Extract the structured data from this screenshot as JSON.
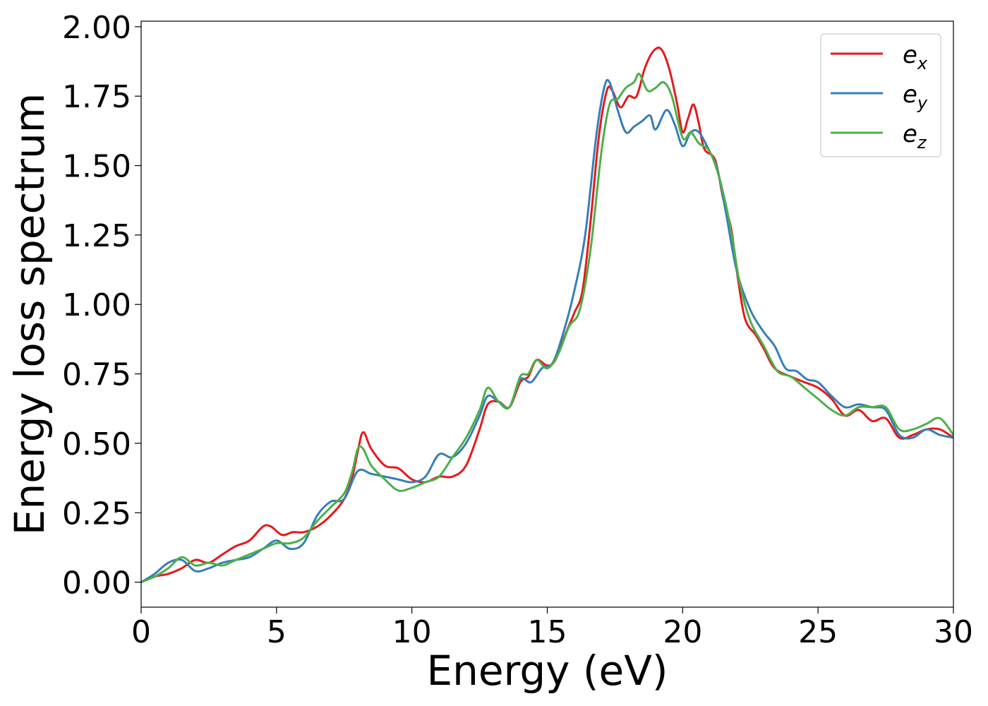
{
  "chart_data": {
    "type": "line",
    "title": "",
    "xlabel": "Energy (eV)",
    "ylabel": "Energy loss spectrum",
    "xlim": [
      0,
      30
    ],
    "ylim": [
      -0.09,
      2.02
    ],
    "xticks": [
      0,
      5,
      10,
      15,
      20,
      25,
      30
    ],
    "xtick_labels": [
      "0",
      "5",
      "10",
      "15",
      "20",
      "25",
      "30"
    ],
    "yticks": [
      0.0,
      0.25,
      0.5,
      0.75,
      1.0,
      1.25,
      1.5,
      1.75,
      2.0
    ],
    "ytick_labels": [
      "0.00",
      "0.25",
      "0.50",
      "0.75",
      "1.00",
      "1.25",
      "1.50",
      "1.75",
      "2.00"
    ],
    "grid": false,
    "legend_position": "top-right",
    "series": [
      {
        "name": "e_x",
        "label_base": "e",
        "label_sub": "x",
        "color": "#e41a1c",
        "points": [
          [
            0,
            0.0
          ],
          [
            0.5,
            0.02
          ],
          [
            1.0,
            0.03
          ],
          [
            1.5,
            0.05
          ],
          [
            2.0,
            0.08
          ],
          [
            2.5,
            0.07
          ],
          [
            3.0,
            0.1
          ],
          [
            3.5,
            0.13
          ],
          [
            4.0,
            0.15
          ],
          [
            4.5,
            0.2
          ],
          [
            4.8,
            0.2
          ],
          [
            5.2,
            0.17
          ],
          [
            5.6,
            0.18
          ],
          [
            6.0,
            0.18
          ],
          [
            6.5,
            0.2
          ],
          [
            7.0,
            0.24
          ],
          [
            7.5,
            0.3
          ],
          [
            7.8,
            0.38
          ],
          [
            8.0,
            0.47
          ],
          [
            8.2,
            0.54
          ],
          [
            8.5,
            0.48
          ],
          [
            9.0,
            0.42
          ],
          [
            9.5,
            0.41
          ],
          [
            10.0,
            0.37
          ],
          [
            10.5,
            0.36
          ],
          [
            11.0,
            0.38
          ],
          [
            11.5,
            0.38
          ],
          [
            12.0,
            0.42
          ],
          [
            12.5,
            0.55
          ],
          [
            12.8,
            0.64
          ],
          [
            13.2,
            0.65
          ],
          [
            13.6,
            0.63
          ],
          [
            14.0,
            0.72
          ],
          [
            14.3,
            0.74
          ],
          [
            14.6,
            0.8
          ],
          [
            15.0,
            0.78
          ],
          [
            15.3,
            0.8
          ],
          [
            15.7,
            0.9
          ],
          [
            16.0,
            0.97
          ],
          [
            16.3,
            1.05
          ],
          [
            16.6,
            1.3
          ],
          [
            16.9,
            1.6
          ],
          [
            17.2,
            1.77
          ],
          [
            17.4,
            1.77
          ],
          [
            17.7,
            1.71
          ],
          [
            18.0,
            1.75
          ],
          [
            18.3,
            1.75
          ],
          [
            18.6,
            1.85
          ],
          [
            18.9,
            1.91
          ],
          [
            19.2,
            1.92
          ],
          [
            19.5,
            1.85
          ],
          [
            19.8,
            1.72
          ],
          [
            20.0,
            1.62
          ],
          [
            20.2,
            1.67
          ],
          [
            20.4,
            1.72
          ],
          [
            20.6,
            1.65
          ],
          [
            20.8,
            1.56
          ],
          [
            21.2,
            1.52
          ],
          [
            21.5,
            1.38
          ],
          [
            21.8,
            1.27
          ],
          [
            22.0,
            1.12
          ],
          [
            22.3,
            0.95
          ],
          [
            22.7,
            0.89
          ],
          [
            23.0,
            0.84
          ],
          [
            23.4,
            0.77
          ],
          [
            24.0,
            0.74
          ],
          [
            24.5,
            0.72
          ],
          [
            25.0,
            0.7
          ],
          [
            25.5,
            0.66
          ],
          [
            26.0,
            0.6
          ],
          [
            26.5,
            0.62
          ],
          [
            27.0,
            0.58
          ],
          [
            27.5,
            0.59
          ],
          [
            28.0,
            0.52
          ],
          [
            28.5,
            0.53
          ],
          [
            29.0,
            0.55
          ],
          [
            29.5,
            0.55
          ],
          [
            30.0,
            0.52
          ]
        ]
      },
      {
        "name": "e_y",
        "label_base": "e",
        "label_sub": "y",
        "color": "#377eb8",
        "points": [
          [
            0,
            0.0
          ],
          [
            0.5,
            0.03
          ],
          [
            1.0,
            0.07
          ],
          [
            1.5,
            0.08
          ],
          [
            2.0,
            0.04
          ],
          [
            2.5,
            0.05
          ],
          [
            3.0,
            0.07
          ],
          [
            3.5,
            0.08
          ],
          [
            4.0,
            0.09
          ],
          [
            4.5,
            0.12
          ],
          [
            5.0,
            0.15
          ],
          [
            5.5,
            0.12
          ],
          [
            6.0,
            0.14
          ],
          [
            6.5,
            0.24
          ],
          [
            7.0,
            0.29
          ],
          [
            7.5,
            0.3
          ],
          [
            8.0,
            0.4
          ],
          [
            8.5,
            0.39
          ],
          [
            9.0,
            0.38
          ],
          [
            9.5,
            0.37
          ],
          [
            10.0,
            0.36
          ],
          [
            10.5,
            0.38
          ],
          [
            11.0,
            0.46
          ],
          [
            11.5,
            0.45
          ],
          [
            12.0,
            0.5
          ],
          [
            12.5,
            0.6
          ],
          [
            12.8,
            0.67
          ],
          [
            13.2,
            0.65
          ],
          [
            13.6,
            0.63
          ],
          [
            14.0,
            0.73
          ],
          [
            14.4,
            0.72
          ],
          [
            14.8,
            0.77
          ],
          [
            15.2,
            0.79
          ],
          [
            15.6,
            0.9
          ],
          [
            16.0,
            1.05
          ],
          [
            16.4,
            1.25
          ],
          [
            16.8,
            1.6
          ],
          [
            17.1,
            1.78
          ],
          [
            17.3,
            1.8
          ],
          [
            17.6,
            1.7
          ],
          [
            17.9,
            1.62
          ],
          [
            18.2,
            1.64
          ],
          [
            18.5,
            1.66
          ],
          [
            18.8,
            1.68
          ],
          [
            19.0,
            1.63
          ],
          [
            19.4,
            1.7
          ],
          [
            19.7,
            1.65
          ],
          [
            20.0,
            1.57
          ],
          [
            20.3,
            1.62
          ],
          [
            20.6,
            1.62
          ],
          [
            21.0,
            1.55
          ],
          [
            21.3,
            1.48
          ],
          [
            21.6,
            1.33
          ],
          [
            22.0,
            1.12
          ],
          [
            22.5,
            0.98
          ],
          [
            23.0,
            0.9
          ],
          [
            23.4,
            0.85
          ],
          [
            23.8,
            0.77
          ],
          [
            24.2,
            0.76
          ],
          [
            24.6,
            0.73
          ],
          [
            25.0,
            0.72
          ],
          [
            25.5,
            0.67
          ],
          [
            26.0,
            0.63
          ],
          [
            26.5,
            0.64
          ],
          [
            27.0,
            0.63
          ],
          [
            27.5,
            0.62
          ],
          [
            28.0,
            0.53
          ],
          [
            28.5,
            0.52
          ],
          [
            29.0,
            0.55
          ],
          [
            29.5,
            0.53
          ],
          [
            30.0,
            0.52
          ]
        ]
      },
      {
        "name": "e_z",
        "label_base": "e",
        "label_sub": "z",
        "color": "#4daf4a",
        "points": [
          [
            0,
            0.0
          ],
          [
            0.5,
            0.02
          ],
          [
            1.0,
            0.05
          ],
          [
            1.5,
            0.09
          ],
          [
            2.0,
            0.06
          ],
          [
            2.5,
            0.07
          ],
          [
            3.0,
            0.06
          ],
          [
            3.5,
            0.08
          ],
          [
            4.0,
            0.1
          ],
          [
            4.5,
            0.12
          ],
          [
            5.0,
            0.14
          ],
          [
            5.5,
            0.14
          ],
          [
            6.0,
            0.16
          ],
          [
            6.5,
            0.22
          ],
          [
            7.0,
            0.27
          ],
          [
            7.5,
            0.32
          ],
          [
            7.8,
            0.4
          ],
          [
            8.0,
            0.48
          ],
          [
            8.2,
            0.48
          ],
          [
            8.5,
            0.42
          ],
          [
            9.0,
            0.37
          ],
          [
            9.5,
            0.33
          ],
          [
            10.0,
            0.34
          ],
          [
            10.5,
            0.36
          ],
          [
            11.0,
            0.38
          ],
          [
            11.5,
            0.45
          ],
          [
            12.0,
            0.52
          ],
          [
            12.5,
            0.62
          ],
          [
            12.8,
            0.7
          ],
          [
            13.2,
            0.65
          ],
          [
            13.6,
            0.63
          ],
          [
            14.0,
            0.74
          ],
          [
            14.3,
            0.75
          ],
          [
            14.6,
            0.8
          ],
          [
            15.0,
            0.77
          ],
          [
            15.4,
            0.82
          ],
          [
            15.8,
            0.92
          ],
          [
            16.2,
            0.98
          ],
          [
            16.6,
            1.2
          ],
          [
            17.0,
            1.55
          ],
          [
            17.3,
            1.72
          ],
          [
            17.6,
            1.74
          ],
          [
            17.9,
            1.78
          ],
          [
            18.2,
            1.8
          ],
          [
            18.4,
            1.83
          ],
          [
            18.7,
            1.77
          ],
          [
            19.0,
            1.78
          ],
          [
            19.3,
            1.8
          ],
          [
            19.6,
            1.75
          ],
          [
            20.0,
            1.6
          ],
          [
            20.3,
            1.62
          ],
          [
            20.6,
            1.58
          ],
          [
            21.0,
            1.55
          ],
          [
            21.4,
            1.44
          ],
          [
            21.8,
            1.26
          ],
          [
            22.1,
            1.08
          ],
          [
            22.5,
            0.94
          ],
          [
            23.0,
            0.85
          ],
          [
            23.5,
            0.76
          ],
          [
            24.0,
            0.74
          ],
          [
            24.5,
            0.7
          ],
          [
            25.0,
            0.66
          ],
          [
            25.5,
            0.62
          ],
          [
            26.0,
            0.6
          ],
          [
            26.5,
            0.63
          ],
          [
            27.0,
            0.63
          ],
          [
            27.5,
            0.63
          ],
          [
            28.0,
            0.55
          ],
          [
            28.5,
            0.55
          ],
          [
            29.0,
            0.57
          ],
          [
            29.5,
            0.59
          ],
          [
            30.0,
            0.53
          ]
        ]
      }
    ]
  }
}
